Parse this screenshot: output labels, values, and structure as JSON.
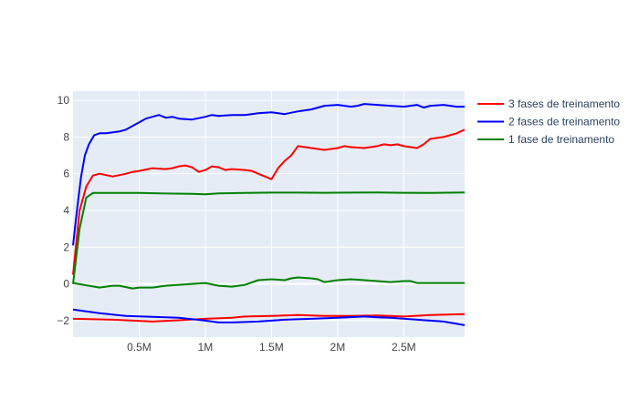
{
  "chart_data": {
    "type": "line",
    "xlim": [
      0,
      2960000
    ],
    "ylim": [
      -2.9,
      10.5
    ],
    "xticks": [
      500000,
      1000000,
      1500000,
      2000000,
      2500000
    ],
    "xtick_labels": [
      "0.5M",
      "1M",
      "1.5M",
      "2M",
      "2.5M"
    ],
    "yticks": [
      -2,
      0,
      2,
      4,
      6,
      8,
      10
    ],
    "ytick_labels": [
      "−2",
      "0",
      "2",
      "4",
      "6",
      "8",
      "10"
    ],
    "grid": true,
    "legend_position": "top-right",
    "series": [
      {
        "name": "3 fases de treinamento",
        "color": "#ff0000",
        "x": [
          0,
          50000,
          100000,
          150000,
          200000,
          300000,
          400000,
          450000,
          500000,
          600000,
          700000,
          750000,
          800000,
          850000,
          900000,
          950000,
          1000000,
          1050000,
          1100000,
          1150000,
          1200000,
          1300000,
          1350000,
          1400000,
          1450000,
          1500000,
          1550000,
          1600000,
          1650000,
          1700000,
          1800000,
          1900000,
          2000000,
          2050000,
          2100000,
          2200000,
          2300000,
          2350000,
          2400000,
          2450000,
          2500000,
          2600000,
          2650000,
          2700000,
          2800000,
          2850000,
          2900000,
          2960000
        ],
        "y": [
          0.5,
          4.0,
          5.3,
          5.9,
          6.0,
          5.85,
          6.0,
          6.1,
          6.15,
          6.3,
          6.25,
          6.3,
          6.4,
          6.45,
          6.35,
          6.1,
          6.2,
          6.4,
          6.35,
          6.2,
          6.25,
          6.2,
          6.15,
          6.0,
          5.85,
          5.7,
          6.3,
          6.7,
          7.0,
          7.5,
          7.4,
          7.3,
          7.4,
          7.5,
          7.45,
          7.4,
          7.5,
          7.6,
          7.55,
          7.6,
          7.5,
          7.4,
          7.6,
          7.9,
          8.0,
          8.1,
          8.2,
          8.4
        ]
      },
      {
        "name": "2 fases de treinamento",
        "color": "#0000ff",
        "x": [
          0,
          30000,
          60000,
          90000,
          120000,
          160000,
          200000,
          250000,
          300000,
          350000,
          400000,
          450000,
          500000,
          550000,
          600000,
          650000,
          700000,
          750000,
          800000,
          900000,
          1000000,
          1050000,
          1100000,
          1200000,
          1300000,
          1400000,
          1500000,
          1600000,
          1700000,
          1800000,
          1900000,
          2000000,
          2050000,
          2100000,
          2150000,
          2200000,
          2300000,
          2400000,
          2500000,
          2600000,
          2650000,
          2700000,
          2800000,
          2900000,
          2960000
        ],
        "y": [
          2.1,
          4.0,
          5.8,
          7.0,
          7.6,
          8.1,
          8.2,
          8.2,
          8.25,
          8.3,
          8.4,
          8.6,
          8.8,
          9.0,
          9.1,
          9.2,
          9.05,
          9.1,
          9.0,
          8.95,
          9.1,
          9.2,
          9.15,
          9.2,
          9.2,
          9.3,
          9.35,
          9.25,
          9.4,
          9.5,
          9.7,
          9.75,
          9.7,
          9.65,
          9.7,
          9.8,
          9.75,
          9.7,
          9.65,
          9.75,
          9.6,
          9.7,
          9.75,
          9.65,
          9.65
        ]
      },
      {
        "name": "1 fase de treinamento",
        "color": "#008000",
        "x": [
          0,
          50000,
          100000,
          150000,
          200000,
          300000,
          500000,
          700000,
          900000,
          1000000,
          1100000,
          1300000,
          1500000,
          1700000,
          1900000,
          2100000,
          2300000,
          2500000,
          2700000,
          2960000
        ],
        "y": [
          0.0,
          3.0,
          4.7,
          4.95,
          4.95,
          4.95,
          4.95,
          4.92,
          4.9,
          4.88,
          4.93,
          4.95,
          4.97,
          4.97,
          4.96,
          4.97,
          4.98,
          4.96,
          4.95,
          4.98
        ]
      },
      {
        "name": "",
        "color": "#008000",
        "x": [
          0,
          200000,
          300000,
          350000,
          450000,
          500000,
          600000,
          700000,
          800000,
          900000,
          1000000,
          1100000,
          1200000,
          1300000,
          1400000,
          1500000,
          1600000,
          1650000,
          1700000,
          1800000,
          1850000,
          1900000,
          2000000,
          2100000,
          2200000,
          2300000,
          2400000,
          2500000,
          2550000,
          2600000,
          2700000,
          2800000,
          2960000
        ],
        "y": [
          0.05,
          -0.2,
          -0.1,
          -0.1,
          -0.25,
          -0.2,
          -0.2,
          -0.1,
          -0.05,
          0.0,
          0.05,
          -0.1,
          -0.15,
          -0.05,
          0.2,
          0.25,
          0.2,
          0.3,
          0.35,
          0.3,
          0.25,
          0.1,
          0.2,
          0.25,
          0.2,
          0.15,
          0.1,
          0.15,
          0.15,
          0.05,
          0.05,
          0.05,
          0.05
        ]
      },
      {
        "name": "",
        "color": "#ff0000",
        "x": [
          0,
          300000,
          600000,
          800000,
          1000000,
          1200000,
          1300000,
          1500000,
          1700000,
          1900000,
          2100000,
          2300000,
          2500000,
          2700000,
          2960000
        ],
        "y": [
          -1.9,
          -1.95,
          -2.05,
          -1.98,
          -1.9,
          -1.85,
          -1.78,
          -1.75,
          -1.7,
          -1.75,
          -1.75,
          -1.72,
          -1.78,
          -1.7,
          -1.65
        ]
      },
      {
        "name": "",
        "color": "#0000ff",
        "x": [
          0,
          200000,
          400000,
          600000,
          800000,
          1000000,
          1100000,
          1200000,
          1400000,
          1600000,
          1800000,
          2000000,
          2200000,
          2300000,
          2400000,
          2600000,
          2800000,
          2960000
        ],
        "y": [
          -1.4,
          -1.6,
          -1.75,
          -1.8,
          -1.85,
          -2.0,
          -2.1,
          -2.1,
          -2.05,
          -1.95,
          -1.9,
          -1.85,
          -1.78,
          -1.82,
          -1.85,
          -1.95,
          -2.05,
          -2.25
        ]
      }
    ]
  }
}
